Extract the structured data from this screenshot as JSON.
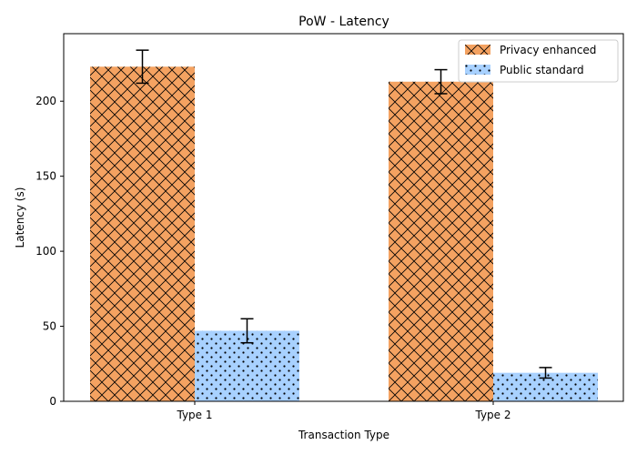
{
  "chart_data": {
    "type": "bar",
    "title": "PoW - Latency",
    "xlabel": "Transaction Type",
    "ylabel": "Latency (s)",
    "categories": [
      "Type 1",
      "Type 2"
    ],
    "ylim": [
      0,
      245
    ],
    "yticks": [
      0,
      50,
      100,
      150,
      200
    ],
    "legend_position": "top-right",
    "grid": false,
    "series": [
      {
        "name": "Privacy enhanced",
        "color": "#f4a261",
        "hatch": "cross",
        "values": [
          223,
          213
        ],
        "errors": [
          11,
          8
        ]
      },
      {
        "name": "Public standard",
        "color": "#a8d1ff",
        "hatch": "dots",
        "values": [
          47,
          19
        ],
        "errors": [
          8,
          3.5
        ]
      }
    ]
  }
}
